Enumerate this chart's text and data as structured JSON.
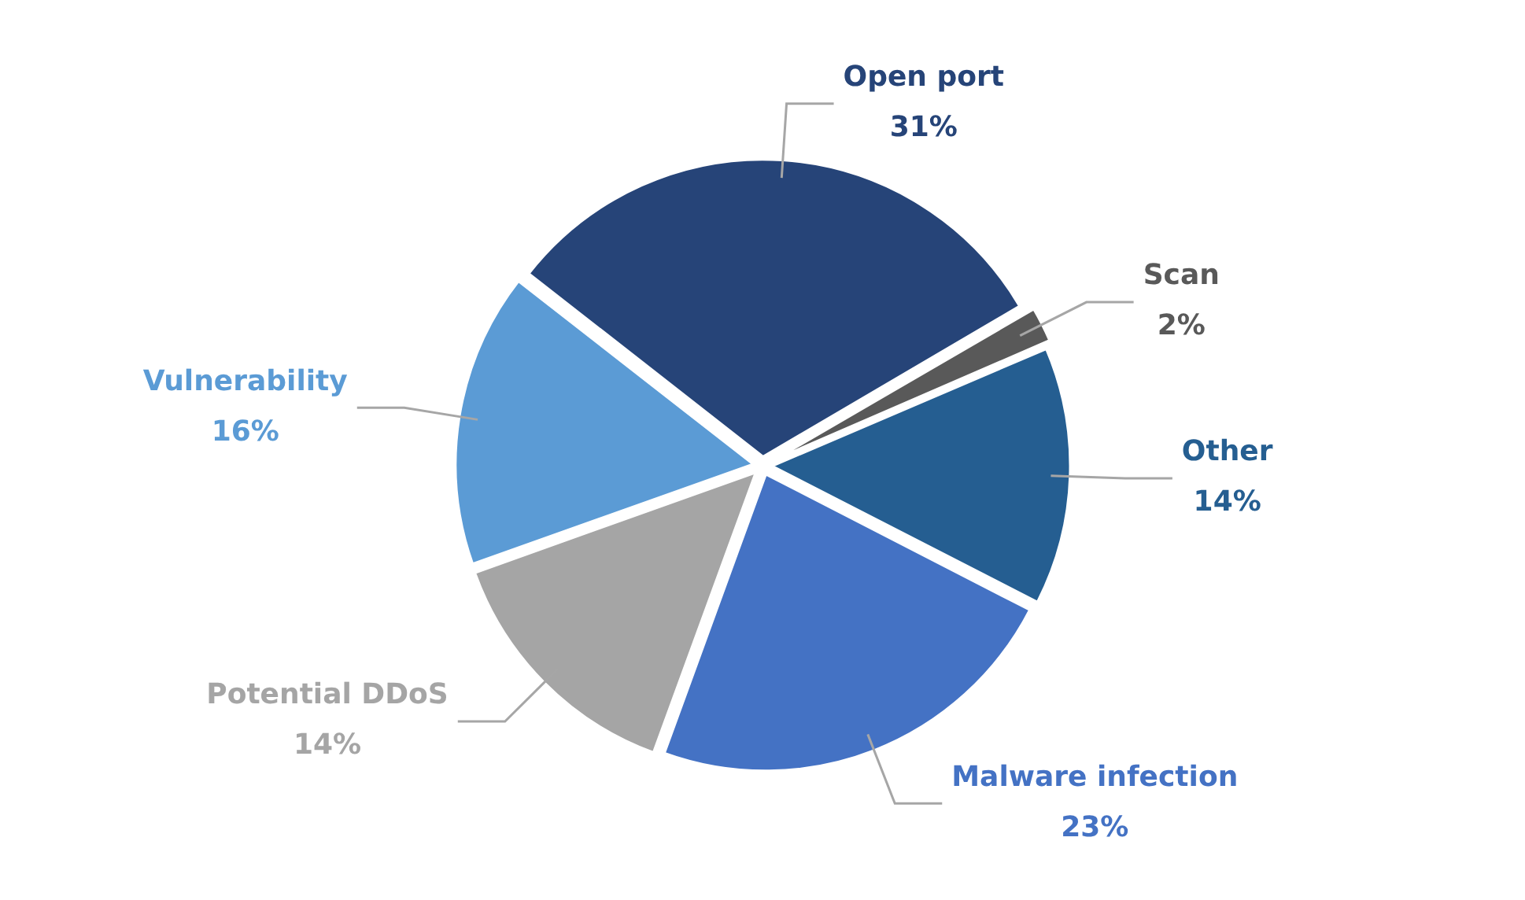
{
  "chart_data": {
    "type": "pie",
    "categories": [
      "Open port",
      "Scan",
      "Other",
      "Malware infection",
      "Potential DDoS",
      "Vulnerability"
    ],
    "values": [
      31,
      2,
      14,
      23,
      14,
      16
    ],
    "value_labels": [
      "31%",
      "2%",
      "14%",
      "23%",
      "14%",
      "16%"
    ],
    "colors": [
      "#264478",
      "#595959",
      "#255e91",
      "#4472c4",
      "#a5a5a5",
      "#5b9bd5"
    ],
    "legend": false
  }
}
